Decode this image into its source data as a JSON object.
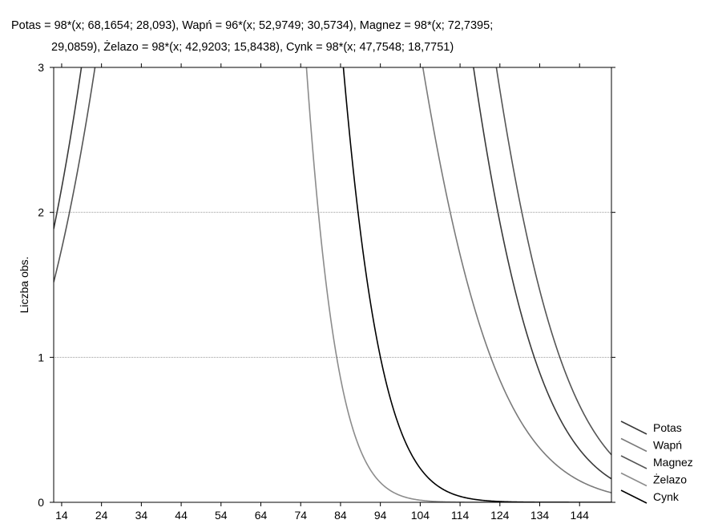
{
  "chart_data": {
    "type": "line",
    "title_lines": [
      "Potas = 98*(x; 68,1654; 28,093), Wapń = 96*(x; 52,9749; 30,5734), Magnez = 98*(x; 72,7395;",
      "29,0859), Żelazo = 98*(x; 42,9203; 15,8438), Cynk = 98*(x; 47,7548; 18,7751)"
    ],
    "xlabel": "",
    "ylabel": "Liczba obs.",
    "xlim": [
      12,
      152
    ],
    "ylim": [
      0,
      3
    ],
    "x_ticks": [
      14,
      24,
      34,
      44,
      54,
      64,
      74,
      84,
      94,
      104,
      114,
      124,
      134,
      144
    ],
    "y_ticks": [
      0,
      1,
      2,
      3
    ],
    "grid": "horizontal-dotted",
    "legend_position": "bottom-right",
    "series": [
      {
        "name": "Potas",
        "n": 98,
        "mean": 68.1654,
        "sd": 28.093,
        "color": "#3a3a3a"
      },
      {
        "name": "Wapń",
        "n": 96,
        "mean": 52.9749,
        "sd": 30.5734,
        "color": "#7a7a7a"
      },
      {
        "name": "Magnez",
        "n": 98,
        "mean": 72.7395,
        "sd": 29.0859,
        "color": "#555555"
      },
      {
        "name": "Żelazo",
        "n": 98,
        "mean": 42.9203,
        "sd": 15.8438,
        "color": "#8c8c8c"
      },
      {
        "name": "Cynk",
        "n": 98,
        "mean": 47.7548,
        "sd": 18.7751,
        "color": "#000000"
      }
    ]
  }
}
